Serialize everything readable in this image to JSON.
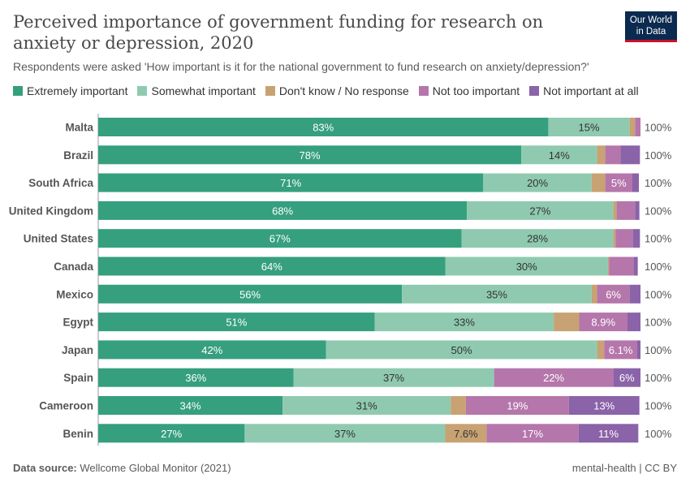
{
  "title": "Perceived importance of government funding for research on anxiety or depression, 2020",
  "subtitle": "Respondents were asked 'How important is it for the national government to fund research on anxiety/depression?'",
  "logo": {
    "line1": "Our World",
    "line2": "in Data"
  },
  "footer": {
    "source_label": "Data source:",
    "source": "Wellcome Global Monitor (2021)",
    "right": "mental-health | CC BY"
  },
  "chart_data": {
    "type": "bar",
    "orientation": "horizontal",
    "stacked": true,
    "xlim": [
      0,
      100
    ],
    "legend_position": "top",
    "categories": [
      "Malta",
      "Brazil",
      "South Africa",
      "United Kingdom",
      "United States",
      "Canada",
      "Mexico",
      "Egypt",
      "Japan",
      "Spain",
      "Cameroon",
      "Benin"
    ],
    "totals": [
      "100%",
      "100%",
      "100%",
      "100%",
      "100%",
      "100%",
      "100%",
      "100%",
      "100%",
      "100%",
      "100%",
      "100%"
    ],
    "series": [
      {
        "name": "Extremely important",
        "color": "#359f7e",
        "label_color": "#ffffff",
        "values": [
          83,
          78,
          71,
          68,
          67,
          64,
          56,
          51,
          42,
          36,
          34,
          27
        ]
      },
      {
        "name": "Somewhat important",
        "color": "#8fcab0",
        "label_color": "#333333",
        "values": [
          15,
          14,
          20,
          27,
          28,
          30,
          35,
          33,
          50,
          37,
          31,
          37
        ]
      },
      {
        "name": "Don't know / No response",
        "color": "#c8a273",
        "label_color": "#333333",
        "values": [
          1,
          1.5,
          2.5,
          0.6,
          0.4,
          0.2,
          1,
          4.7,
          1.3,
          0,
          2.8,
          7.6
        ]
      },
      {
        "name": "Not too important",
        "color": "#b576ab",
        "label_color": "#ffffff",
        "values": [
          1,
          2.8,
          5,
          3.4,
          3.2,
          4.6,
          6,
          8.9,
          6.1,
          22,
          19,
          17
        ]
      },
      {
        "name": "Not important at all",
        "color": "#8a63a8",
        "label_color": "#ffffff",
        "values": [
          0.3,
          3.6,
          1.2,
          0.8,
          1.3,
          0.7,
          2.1,
          2.6,
          0.8,
          6,
          13,
          11
        ]
      }
    ]
  }
}
